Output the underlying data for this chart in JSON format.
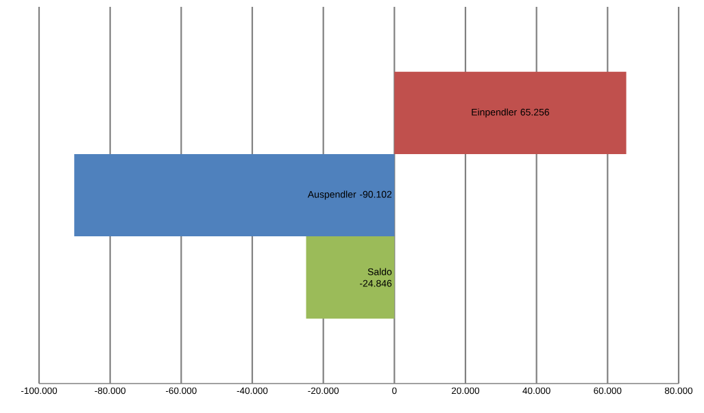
{
  "chart_data": {
    "type": "bar",
    "orientation": "horizontal",
    "categories": [
      "Einpendler",
      "Auspendler",
      "Saldo"
    ],
    "values": [
      65256,
      -90102,
      -24846
    ],
    "value_labels": [
      "65.256",
      "-90.102",
      "-24.846"
    ],
    "colors": [
      "#c0504d",
      "#4f81bd",
      "#9bbb59"
    ],
    "xlim": [
      -100000,
      80000
    ],
    "xticks": [
      {
        "value": -100000,
        "label": "-100.000"
      },
      {
        "value": -80000,
        "label": "-80.000"
      },
      {
        "value": -60000,
        "label": "-60.000"
      },
      {
        "value": -40000,
        "label": "-40.000"
      },
      {
        "value": -20000,
        "label": "-20.000"
      },
      {
        "value": 0,
        "label": "0"
      },
      {
        "value": 20000,
        "label": "20.000"
      },
      {
        "value": 40000,
        "label": "40.000"
      },
      {
        "value": 60000,
        "label": "60.000"
      },
      {
        "value": 80000,
        "label": "80.000"
      }
    ],
    "grid": "x",
    "tick_labels": "x"
  }
}
